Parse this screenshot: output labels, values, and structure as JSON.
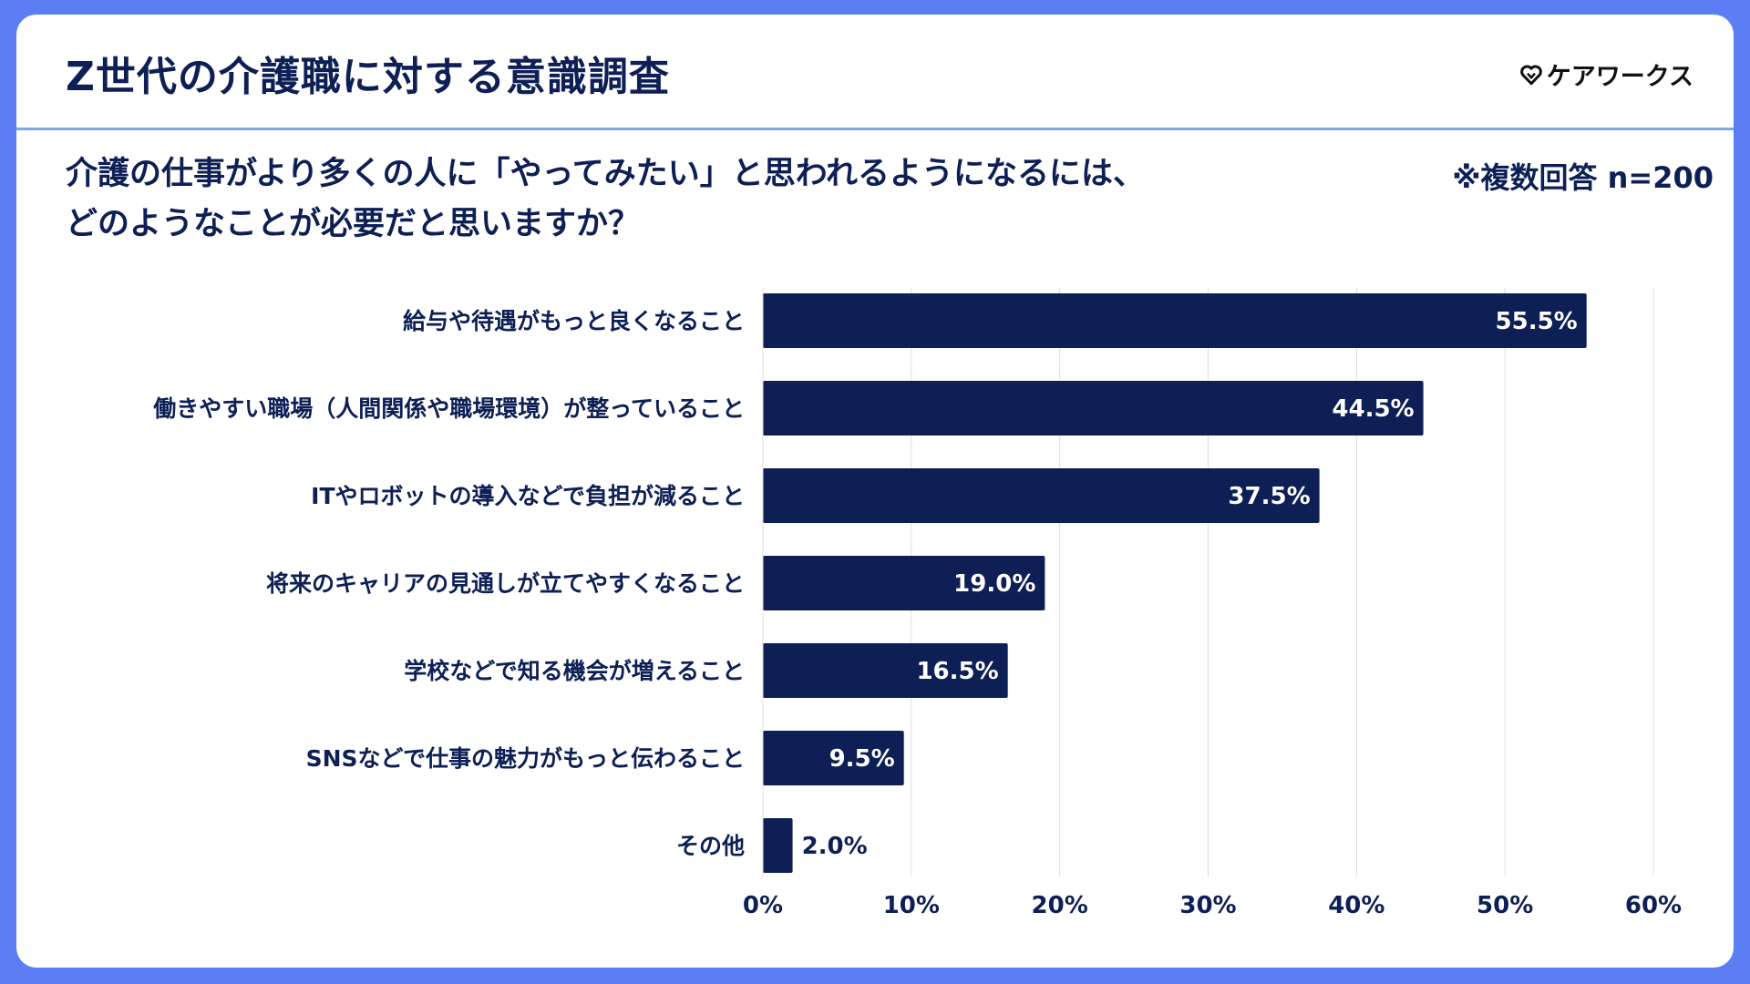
{
  "header": {
    "title": "Z世代の介護職に対する意識調査",
    "logo_text": "ケアワークス",
    "logo_icon": "heart-icon"
  },
  "question": {
    "line1": "介護の仕事がより多くの人に「やってみたい」と思われるようになるには、",
    "line2": "どのようなことが必要だと思いますか？"
  },
  "note": "※複数回答 n=200",
  "colors": {
    "background": "#5b7ef5",
    "bar": "#0d1f55",
    "text": "#0d1f55",
    "divider": "#7ba4ee",
    "grid": "#dddddd"
  },
  "chart_data": {
    "type": "bar",
    "orientation": "horizontal",
    "categories": [
      "給与や待遇がもっと良くなること",
      "働きやすい職場（人間関係や職場環境）が整っていること",
      "ITやロボットの導入などで負担が減ること",
      "将来のキャリアの見通しが立てやすくなること",
      "学校などで知る機会が増えること",
      "SNSなどで仕事の魅力がもっと伝わること",
      "その他"
    ],
    "values": [
      55.5,
      44.5,
      37.5,
      19.0,
      16.5,
      9.5,
      2.0
    ],
    "value_labels": [
      "55.5%",
      "44.5%",
      "37.5%",
      "19.0%",
      "16.5%",
      "9.5%",
      "2.0%"
    ],
    "xlim": [
      0,
      60
    ],
    "xticks": [
      0,
      10,
      20,
      30,
      40,
      50,
      60
    ],
    "xtick_labels": [
      "0%",
      "10%",
      "20%",
      "30%",
      "40%",
      "50%",
      "60%"
    ],
    "grid": true,
    "legend": "none"
  }
}
